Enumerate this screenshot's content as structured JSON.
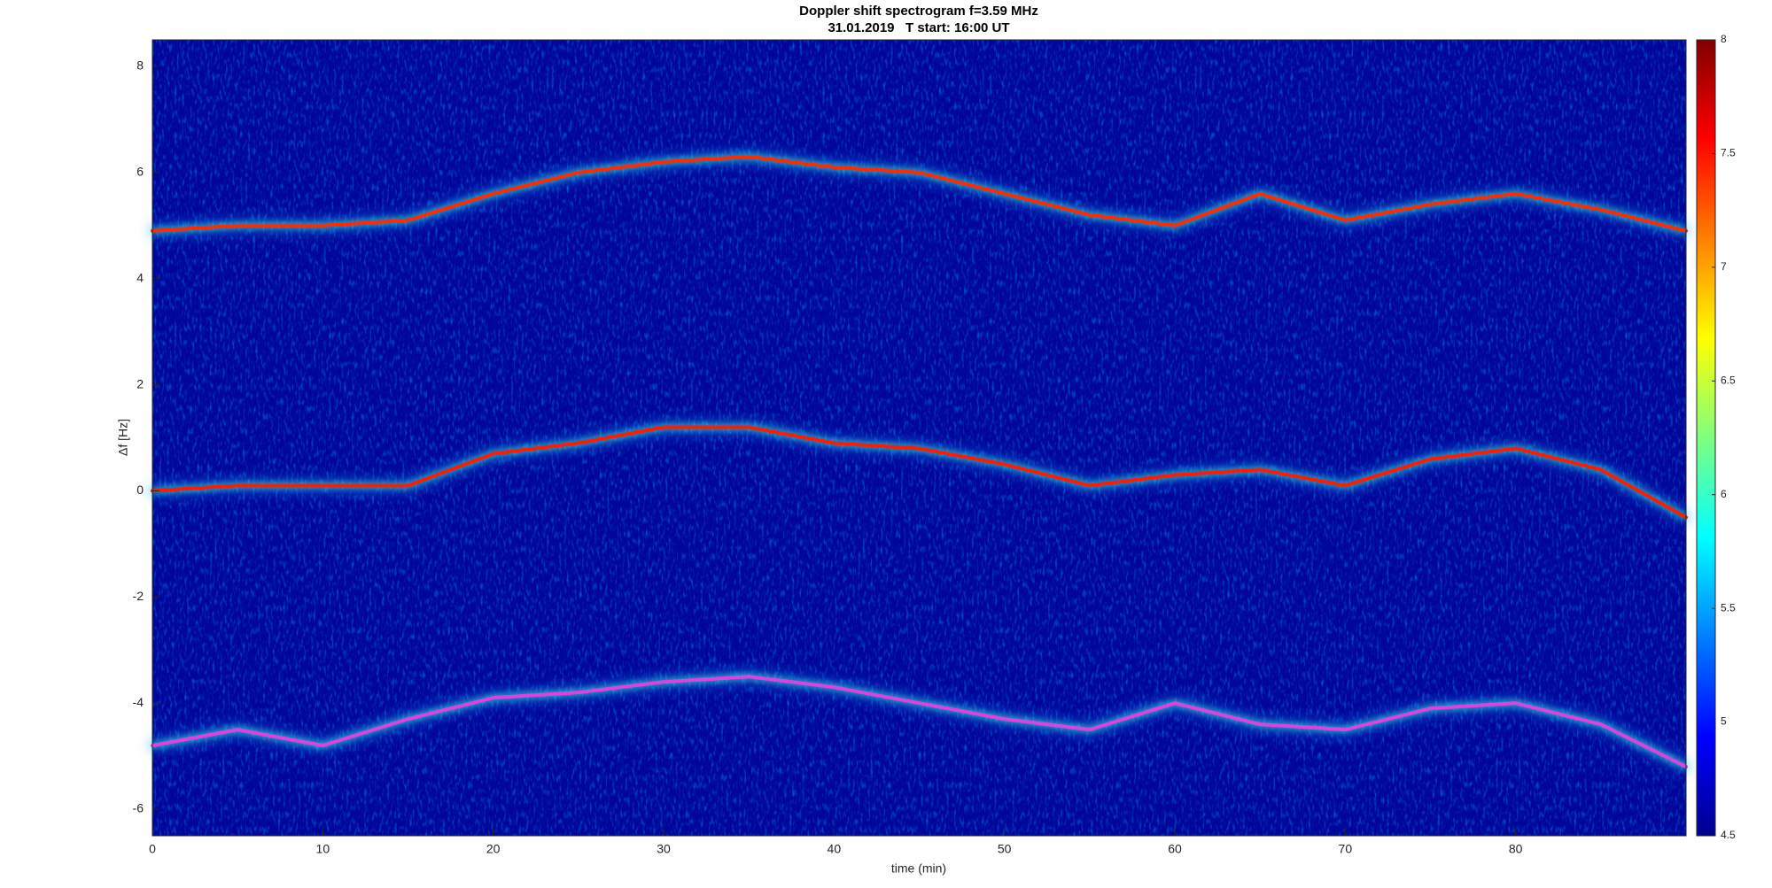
{
  "chart_data": {
    "type": "spectrogram",
    "title": "Doppler shift spectrogram f=3.59 MHz",
    "subtitle": "31.01.2019   T start: 16:00 UT",
    "x_label": "time (min)",
    "y_label": "Δf [Hz]",
    "xlim": [
      0,
      90
    ],
    "xticks": [
      0,
      10,
      20,
      30,
      40,
      50,
      60,
      70,
      80
    ],
    "ylim": [
      -6.5,
      8.5
    ],
    "yticks": [
      -6,
      -4,
      -2,
      0,
      2,
      4,
      6,
      8
    ],
    "clim": [
      4.5,
      8
    ],
    "cticks": [
      4.5,
      5,
      5.5,
      6,
      6.5,
      7,
      7.5,
      8
    ],
    "x": [
      0,
      5,
      10,
      15,
      20,
      25,
      30,
      35,
      40,
      45,
      50,
      55,
      60,
      65,
      70,
      75,
      80,
      85,
      90
    ],
    "series": [
      {
        "color": "#ff2a00",
        "values": [
          4.9,
          5.0,
          5.0,
          5.1,
          5.6,
          6.0,
          6.2,
          6.3,
          6.1,
          6.0,
          5.6,
          5.2,
          5.0,
          5.6,
          5.1,
          5.4,
          5.6,
          5.3,
          4.9
        ]
      },
      {
        "color": "#ff1a00",
        "values": [
          0.0,
          0.1,
          0.1,
          0.1,
          0.7,
          0.9,
          1.2,
          1.2,
          0.9,
          0.8,
          0.5,
          0.1,
          0.3,
          0.4,
          0.1,
          0.6,
          0.8,
          0.4,
          -0.5
        ]
      },
      {
        "color": "#e040e0",
        "values": [
          -4.8,
          -4.5,
          -4.8,
          -4.3,
          -3.9,
          -3.8,
          -3.6,
          -3.5,
          -3.7,
          -4.0,
          -4.3,
          -4.5,
          -4.0,
          -4.4,
          -4.5,
          -4.1,
          -4.0,
          -4.4,
          -5.2
        ]
      }
    ]
  }
}
